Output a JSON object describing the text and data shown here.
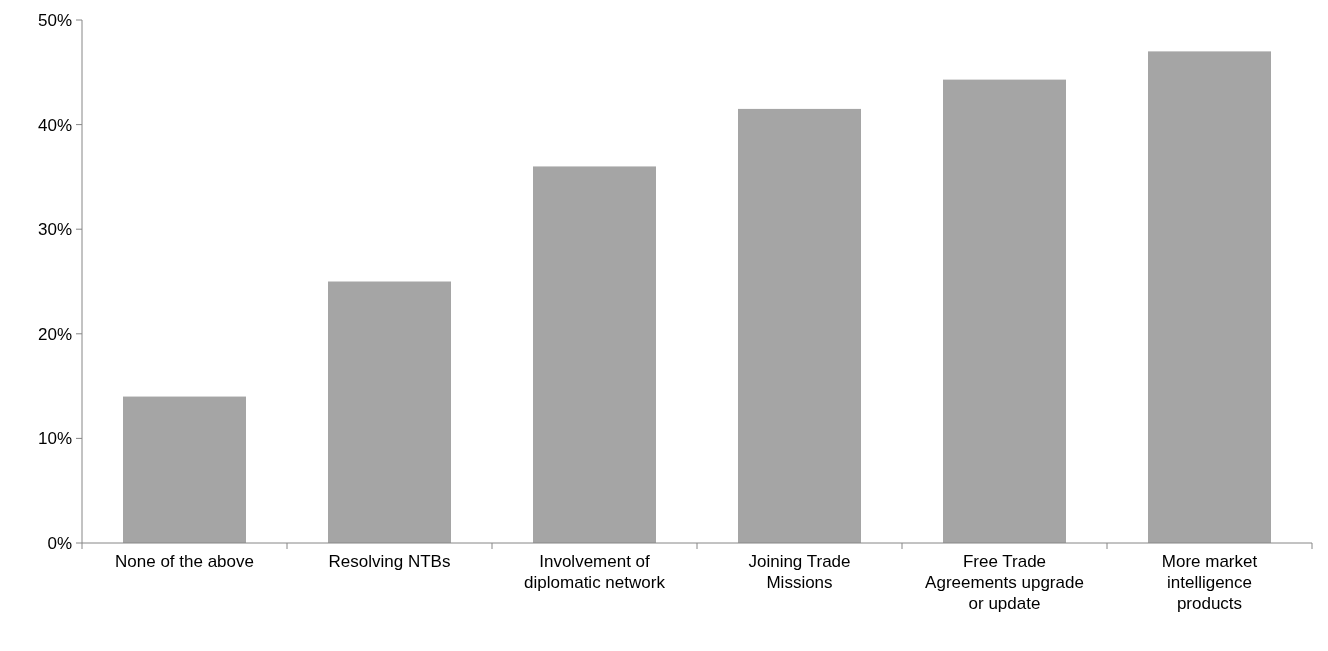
{
  "chart_data": {
    "type": "bar",
    "categories": [
      "None of the above",
      "Resolving NTBs",
      "Involvement of diplomatic network",
      "Joining Trade Missions",
      "Free Trade Agreements upgrade or update",
      "More market intelligence products"
    ],
    "values": [
      14,
      25,
      36,
      41.5,
      44.3,
      47
    ],
    "color": "#a5a5a5",
    "ylim": [
      0,
      50
    ],
    "yticks": [
      {
        "value": 0,
        "label": "0%"
      },
      {
        "value": 10,
        "label": "10%"
      },
      {
        "value": 20,
        "label": "20%"
      },
      {
        "value": 30,
        "label": "30%"
      },
      {
        "value": 40,
        "label": "40%"
      },
      {
        "value": 50,
        "label": "50%"
      }
    ],
    "grid": false
  }
}
